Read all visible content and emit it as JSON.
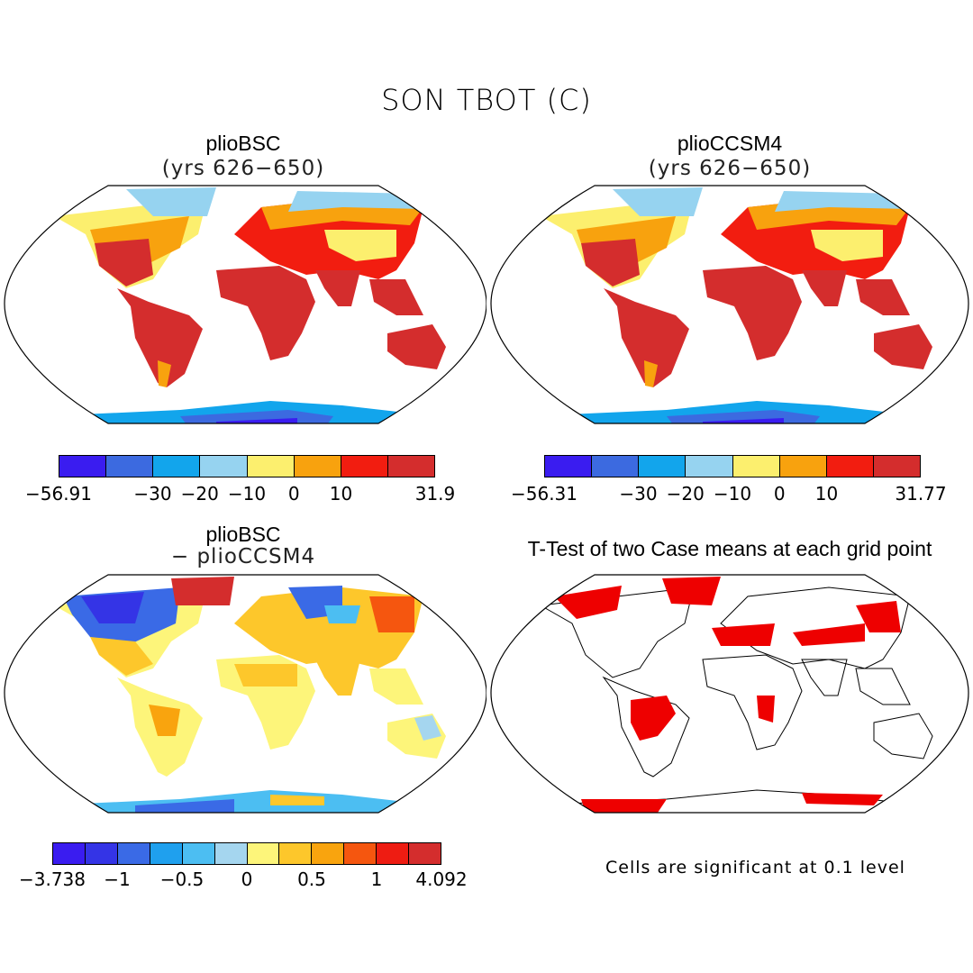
{
  "title": "SON TBOT (C)",
  "panels": [
    {
      "title": "plioBSC",
      "subtitle": "(yrs 626−650)"
    },
    {
      "title": "plioCCSM4",
      "subtitle": "(yrs 626−650)"
    },
    {
      "title": "plioBSC",
      "subtitle": "− plioCCSM4"
    },
    {
      "title": "T-Test of two Case means at each grid point",
      "subtitle": ""
    }
  ],
  "colorbars": [
    {
      "colors": [
        "#3a1cf0",
        "#3c6ae0",
        "#12a5ec",
        "#96d3f0",
        "#fcef6e",
        "#f8a20e",
        "#f21d10",
        "#d42d2d"
      ],
      "labels": [
        "−56.91",
        "−30",
        "−20",
        "−10",
        "0",
        "10",
        "31.9"
      ]
    },
    {
      "colors": [
        "#3a1cf0",
        "#3c6ae0",
        "#12a5ec",
        "#96d3f0",
        "#fcef6e",
        "#f8a20e",
        "#f21d10",
        "#d42d2d"
      ],
      "labels": [
        "−56.31",
        "−30",
        "−20",
        "−10",
        "0",
        "10",
        "31.77"
      ]
    },
    {
      "colors": [
        "#3a1cf0",
        "#3434e6",
        "#3a6ae6",
        "#1fa0ee",
        "#4cbef2",
        "#a5d6ef",
        "#fdf57a",
        "#fdc72b",
        "#f9a40e",
        "#f5560f",
        "#ee1c12",
        "#d42d2d"
      ],
      "labels": [
        "−3.738",
        "−1",
        "−0.5",
        "0",
        "0.5",
        "1",
        "4.092"
      ]
    }
  ],
  "note": "Cells are significant at 0.1 level"
}
